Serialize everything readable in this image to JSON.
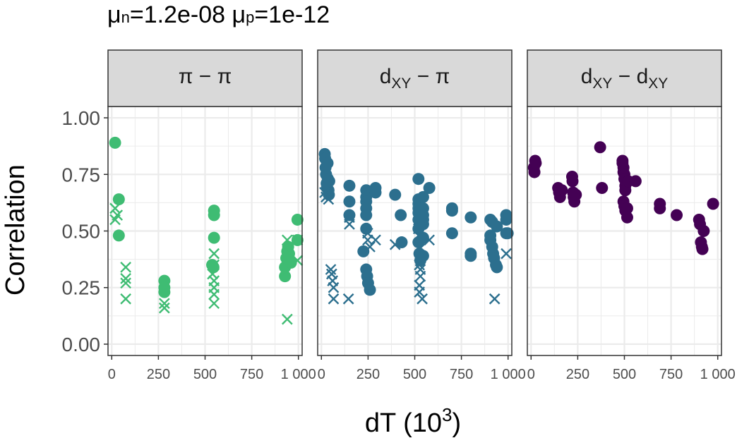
{
  "chart_data": {
    "type": "scatter",
    "title_parts": {
      "mu": "μ",
      "n_sub": "n",
      "n_val": "=1.2e-08 ",
      "p_sub": "p",
      "p_val": "=1e-12"
    },
    "xlabel_parts": {
      "base": "dT (10",
      "sup": "3",
      "close": ")"
    },
    "ylabel": "Correlation",
    "xlim": [
      -20,
      1020
    ],
    "ylim": [
      -0.05,
      1.05
    ],
    "x_ticks": [
      {
        "value": 0,
        "label": "0"
      },
      {
        "value": 250,
        "label": "250"
      },
      {
        "value": 500,
        "label": "500"
      },
      {
        "value": 750,
        "label": "750"
      },
      {
        "value": 1000,
        "label": "1 000"
      }
    ],
    "y_ticks": [
      {
        "value": 0.0,
        "label": "0.00"
      },
      {
        "value": 0.25,
        "label": "0.25"
      },
      {
        "value": 0.5,
        "label": "0.50"
      },
      {
        "value": 0.75,
        "label": "0.75"
      },
      {
        "value": 1.0,
        "label": "1.00"
      }
    ],
    "panels": [
      {
        "name": "pi-pi",
        "strip": [
          {
            "t": "π − π"
          }
        ],
        "color": "#3fbc73",
        "points": [
          [
            18,
            0.89
          ],
          [
            38,
            0.64
          ],
          [
            38,
            0.48
          ],
          [
            282,
            0.28
          ],
          [
            282,
            0.25
          ],
          [
            282,
            0.23
          ],
          [
            538,
            0.35
          ],
          [
            545,
            0.34
          ],
          [
            548,
            0.59
          ],
          [
            548,
            0.57
          ],
          [
            548,
            0.47
          ],
          [
            928,
            0.3
          ],
          [
            928,
            0.34
          ],
          [
            935,
            0.38
          ],
          [
            940,
            0.41
          ],
          [
            945,
            0.43
          ],
          [
            950,
            0.4
          ],
          [
            955,
            0.37
          ],
          [
            960,
            0.36
          ],
          [
            995,
            0.55
          ],
          [
            995,
            0.46
          ]
        ],
        "crosses": [
          [
            18,
            0.6
          ],
          [
            18,
            0.55
          ],
          [
            30,
            0.57
          ],
          [
            75,
            0.34
          ],
          [
            75,
            0.29
          ],
          [
            75,
            0.27
          ],
          [
            75,
            0.2
          ],
          [
            282,
            0.18
          ],
          [
            282,
            0.16
          ],
          [
            540,
            0.31
          ],
          [
            548,
            0.4
          ],
          [
            548,
            0.35
          ],
          [
            548,
            0.28
          ],
          [
            548,
            0.25
          ],
          [
            548,
            0.22
          ],
          [
            548,
            0.18
          ],
          [
            940,
            0.46
          ],
          [
            940,
            0.42
          ],
          [
            940,
            0.11
          ],
          [
            950,
            0.38
          ],
          [
            995,
            0.46
          ],
          [
            995,
            0.37
          ]
        ]
      },
      {
        "name": "dxy-pi",
        "strip": [
          {
            "t": "d"
          },
          {
            "t": "XY",
            "sub": true
          },
          {
            "t": " − π"
          }
        ],
        "color": "#2c6f8e",
        "points": [
          [
            18,
            0.84
          ],
          [
            20,
            0.82
          ],
          [
            22,
            0.78
          ],
          [
            25,
            0.75
          ],
          [
            28,
            0.71
          ],
          [
            30,
            0.69
          ],
          [
            33,
            0.8
          ],
          [
            35,
            0.73
          ],
          [
            38,
            0.68
          ],
          [
            40,
            0.66
          ],
          [
            42,
            0.72
          ],
          [
            150,
            0.7
          ],
          [
            150,
            0.63
          ],
          [
            150,
            0.57
          ],
          [
            225,
            0.41
          ],
          [
            240,
            0.68
          ],
          [
            240,
            0.65
          ],
          [
            240,
            0.63
          ],
          [
            240,
            0.6
          ],
          [
            240,
            0.57
          ],
          [
            240,
            0.51
          ],
          [
            240,
            0.33
          ],
          [
            245,
            0.3
          ],
          [
            250,
            0.27
          ],
          [
            260,
            0.24
          ],
          [
            290,
            0.69
          ],
          [
            290,
            0.67
          ],
          [
            395,
            0.66
          ],
          [
            425,
            0.57
          ],
          [
            430,
            0.45
          ],
          [
            520,
            0.73
          ],
          [
            520,
            0.64
          ],
          [
            520,
            0.62
          ],
          [
            520,
            0.6
          ],
          [
            520,
            0.58
          ],
          [
            520,
            0.55
          ],
          [
            520,
            0.51
          ],
          [
            520,
            0.45
          ],
          [
            525,
            0.4
          ],
          [
            530,
            0.37
          ],
          [
            545,
            0.65
          ],
          [
            545,
            0.6
          ],
          [
            545,
            0.57
          ],
          [
            545,
            0.55
          ],
          [
            545,
            0.53
          ],
          [
            545,
            0.47
          ],
          [
            545,
            0.39
          ],
          [
            578,
            0.69
          ],
          [
            700,
            0.6
          ],
          [
            700,
            0.59
          ],
          [
            700,
            0.49
          ],
          [
            800,
            0.56
          ],
          [
            800,
            0.4
          ],
          [
            800,
            0.39
          ],
          [
            905,
            0.55
          ],
          [
            905,
            0.48
          ],
          [
            905,
            0.46
          ],
          [
            915,
            0.54
          ],
          [
            915,
            0.43
          ],
          [
            920,
            0.4
          ],
          [
            925,
            0.38
          ],
          [
            935,
            0.35
          ],
          [
            940,
            0.34
          ],
          [
            940,
            0.52
          ],
          [
            990,
            0.57
          ],
          [
            990,
            0.55
          ],
          [
            990,
            0.49
          ],
          [
            998,
            0.49
          ]
        ],
        "crosses": [
          [
            18,
            0.67
          ],
          [
            25,
            0.65
          ],
          [
            38,
            0.64
          ],
          [
            50,
            0.33
          ],
          [
            55,
            0.31
          ],
          [
            60,
            0.28
          ],
          [
            65,
            0.25
          ],
          [
            65,
            0.2
          ],
          [
            145,
            0.2
          ],
          [
            150,
            0.56
          ],
          [
            150,
            0.53
          ],
          [
            248,
            0.49
          ],
          [
            248,
            0.46
          ],
          [
            260,
            0.43
          ],
          [
            290,
            0.46
          ],
          [
            395,
            0.44
          ],
          [
            520,
            0.51
          ],
          [
            520,
            0.48
          ],
          [
            525,
            0.42
          ],
          [
            525,
            0.35
          ],
          [
            530,
            0.33
          ],
          [
            530,
            0.3
          ],
          [
            525,
            0.26
          ],
          [
            525,
            0.23
          ],
          [
            540,
            0.2
          ],
          [
            578,
            0.46
          ],
          [
            928,
            0.2
          ],
          [
            990,
            0.4
          ]
        ]
      },
      {
        "name": "dxy-dxy",
        "strip": [
          {
            "t": "d"
          },
          {
            "t": "XY",
            "sub": true
          },
          {
            "t": " − d"
          },
          {
            "t": "XY",
            "sub": true
          }
        ],
        "color": "#440154",
        "points": [
          [
            15,
            0.78
          ],
          [
            18,
            0.76
          ],
          [
            22,
            0.81
          ],
          [
            25,
            0.8
          ],
          [
            145,
            0.69
          ],
          [
            150,
            0.67
          ],
          [
            155,
            0.65
          ],
          [
            165,
            0.68
          ],
          [
            220,
            0.74
          ],
          [
            222,
            0.72
          ],
          [
            225,
            0.67
          ],
          [
            228,
            0.65
          ],
          [
            232,
            0.63
          ],
          [
            240,
            0.66
          ],
          [
            370,
            0.87
          ],
          [
            380,
            0.69
          ],
          [
            490,
            0.81
          ],
          [
            490,
            0.8
          ],
          [
            495,
            0.78
          ],
          [
            495,
            0.76
          ],
          [
            500,
            0.75
          ],
          [
            500,
            0.73
          ],
          [
            505,
            0.7
          ],
          [
            505,
            0.68
          ],
          [
            495,
            0.63
          ],
          [
            500,
            0.61
          ],
          [
            505,
            0.59
          ],
          [
            515,
            0.6
          ],
          [
            515,
            0.56
          ],
          [
            520,
            0.72
          ],
          [
            560,
            0.72
          ],
          [
            690,
            0.62
          ],
          [
            690,
            0.6
          ],
          [
            780,
            0.57
          ],
          [
            900,
            0.55
          ],
          [
            905,
            0.53
          ],
          [
            910,
            0.45
          ],
          [
            915,
            0.43
          ],
          [
            918,
            0.42
          ],
          [
            925,
            0.5
          ],
          [
            975,
            0.62
          ]
        ],
        "crosses": []
      }
    ]
  }
}
